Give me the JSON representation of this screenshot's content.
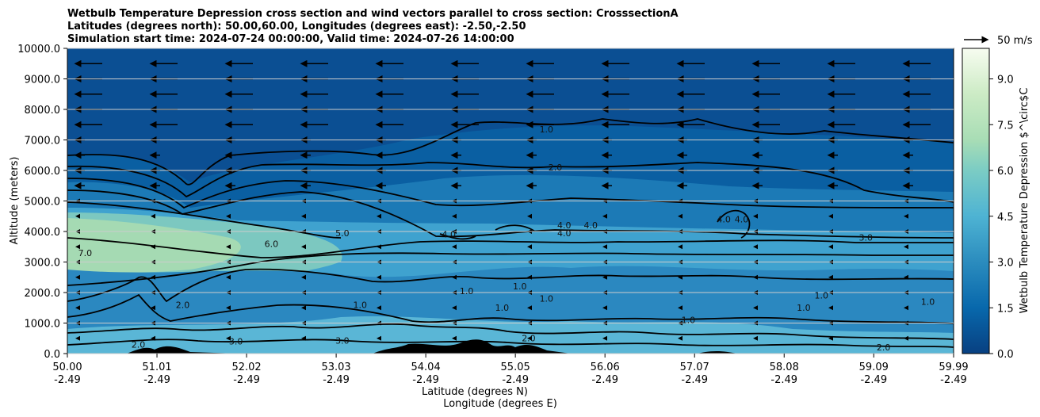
{
  "chart_data": {
    "type": "contour",
    "title_lines": [
      "Wetbulb Temperature Depression cross section and wind vectors parallel to cross section: CrosssectionA",
      "Latitudes (degrees north): 50.00,60.00, Longitudes (degrees east): -2.50,-2.50",
      "Simulation start time: 2024-07-24 00:00:00, Valid time: 2024-07-26 14:00:00"
    ],
    "ylabel": "Altitude (meters)",
    "xlabel_lines": [
      "Latitude (degrees N)",
      "Longitude (degrees E)"
    ],
    "ylim": [
      0,
      10000
    ],
    "xlim": [
      50.0,
      59.99
    ],
    "y_ticks": [
      "0.0",
      "1000.0",
      "2000.0",
      "3000.0",
      "4000.0",
      "5000.0",
      "6000.0",
      "7000.0",
      "8000.0",
      "9000.0",
      "10000.0"
    ],
    "x_ticks": [
      {
        "lat": "50.00",
        "lon": "-2.49"
      },
      {
        "lat": "51.01",
        "lon": "-2.49"
      },
      {
        "lat": "52.02",
        "lon": "-2.49"
      },
      {
        "lat": "53.03",
        "lon": "-2.49"
      },
      {
        "lat": "54.04",
        "lon": "-2.49"
      },
      {
        "lat": "55.05",
        "lon": "-2.49"
      },
      {
        "lat": "56.06",
        "lon": "-2.49"
      },
      {
        "lat": "57.07",
        "lon": "-2.49"
      },
      {
        "lat": "58.08",
        "lon": "-2.49"
      },
      {
        "lat": "59.09",
        "lon": "-2.49"
      },
      {
        "lat": "59.99",
        "lon": "-2.49"
      }
    ],
    "grid": "horizontal",
    "colorbar": {
      "label": "Wetbulb Temperature Depression $^\\circ$C",
      "range": [
        0,
        10
      ],
      "ticks": [
        "0.0",
        "1.5",
        "3.0",
        "4.5",
        "6.0",
        "7.5",
        "9.0"
      ],
      "colormap": "GnBu_r"
    },
    "wind_key": "50 m/s",
    "contour_labels": [
      {
        "text": "1.0",
        "lat": 55.4,
        "alt": 7250
      },
      {
        "text": "2.0",
        "lat": 55.5,
        "alt": 6000
      },
      {
        "text": "4.0",
        "lat": 55.6,
        "alt": 3850
      },
      {
        "text": "4.0",
        "lat": 55.6,
        "alt": 4100
      },
      {
        "text": "4.0",
        "lat": 55.9,
        "alt": 4100
      },
      {
        "text": "5.0",
        "lat": 53.1,
        "alt": 3850
      },
      {
        "text": "6.0",
        "lat": 52.3,
        "alt": 3500
      },
      {
        "text": "7.0",
        "lat": 50.2,
        "alt": 3200
      },
      {
        "text": "4.0",
        "lat": 54.3,
        "alt": 3800
      },
      {
        "text": "4.0",
        "lat": 57.4,
        "alt": 4300
      },
      {
        "text": "4.0",
        "lat": 57.6,
        "alt": 4300
      },
      {
        "text": "3.0",
        "lat": 59.0,
        "alt": 3700
      },
      {
        "text": "1.0",
        "lat": 55.1,
        "alt": 2100
      },
      {
        "text": "1.0",
        "lat": 55.4,
        "alt": 1700
      },
      {
        "text": "1.0",
        "lat": 58.5,
        "alt": 1800
      },
      {
        "text": "1.0",
        "lat": 58.3,
        "alt": 1400
      },
      {
        "text": "1.0",
        "lat": 57.0,
        "alt": 1000
      },
      {
        "text": "1.0",
        "lat": 53.3,
        "alt": 1500
      },
      {
        "text": "1.0",
        "lat": 54.9,
        "alt": 1400
      },
      {
        "text": "1.0",
        "lat": 54.5,
        "alt": 1950
      },
      {
        "text": "2.0",
        "lat": 55.2,
        "alt": 400
      },
      {
        "text": "2.0",
        "lat": 50.8,
        "alt": 200
      },
      {
        "text": "2.0",
        "lat": 51.3,
        "alt": 1500
      },
      {
        "text": "3.0",
        "lat": 51.9,
        "alt": 300
      },
      {
        "text": "3.0",
        "lat": 53.1,
        "alt": 330
      },
      {
        "text": "2.0",
        "lat": 59.2,
        "alt": 100
      },
      {
        "text": "1.0",
        "lat": 59.7,
        "alt": 1600
      }
    ]
  }
}
